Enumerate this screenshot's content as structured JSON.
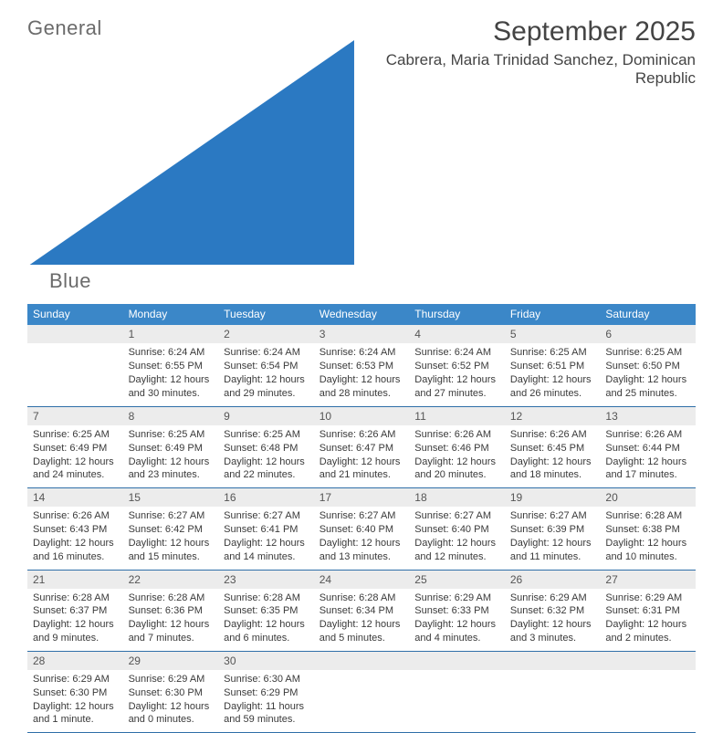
{
  "brand": {
    "text1": "General",
    "text2": "Blue",
    "tri_color": "#2b79c2"
  },
  "title": "September 2025",
  "location": "Cabrera, Maria Trinidad Sanchez, Dominican Republic",
  "colors": {
    "header_bg": "#3b87c8",
    "date_row_bg": "#ececec",
    "week_divider": "#2f6fa8",
    "text": "#333333"
  },
  "dow": [
    "Sunday",
    "Monday",
    "Tuesday",
    "Wednesday",
    "Thursday",
    "Friday",
    "Saturday"
  ],
  "weeks": [
    [
      {
        "n": "",
        "sr": "",
        "ss": "",
        "dl": ""
      },
      {
        "n": "1",
        "sr": "Sunrise: 6:24 AM",
        "ss": "Sunset: 6:55 PM",
        "dl": "Daylight: 12 hours and 30 minutes."
      },
      {
        "n": "2",
        "sr": "Sunrise: 6:24 AM",
        "ss": "Sunset: 6:54 PM",
        "dl": "Daylight: 12 hours and 29 minutes."
      },
      {
        "n": "3",
        "sr": "Sunrise: 6:24 AM",
        "ss": "Sunset: 6:53 PM",
        "dl": "Daylight: 12 hours and 28 minutes."
      },
      {
        "n": "4",
        "sr": "Sunrise: 6:24 AM",
        "ss": "Sunset: 6:52 PM",
        "dl": "Daylight: 12 hours and 27 minutes."
      },
      {
        "n": "5",
        "sr": "Sunrise: 6:25 AM",
        "ss": "Sunset: 6:51 PM",
        "dl": "Daylight: 12 hours and 26 minutes."
      },
      {
        "n": "6",
        "sr": "Sunrise: 6:25 AM",
        "ss": "Sunset: 6:50 PM",
        "dl": "Daylight: 12 hours and 25 minutes."
      }
    ],
    [
      {
        "n": "7",
        "sr": "Sunrise: 6:25 AM",
        "ss": "Sunset: 6:49 PM",
        "dl": "Daylight: 12 hours and 24 minutes."
      },
      {
        "n": "8",
        "sr": "Sunrise: 6:25 AM",
        "ss": "Sunset: 6:49 PM",
        "dl": "Daylight: 12 hours and 23 minutes."
      },
      {
        "n": "9",
        "sr": "Sunrise: 6:25 AM",
        "ss": "Sunset: 6:48 PM",
        "dl": "Daylight: 12 hours and 22 minutes."
      },
      {
        "n": "10",
        "sr": "Sunrise: 6:26 AM",
        "ss": "Sunset: 6:47 PM",
        "dl": "Daylight: 12 hours and 21 minutes."
      },
      {
        "n": "11",
        "sr": "Sunrise: 6:26 AM",
        "ss": "Sunset: 6:46 PM",
        "dl": "Daylight: 12 hours and 20 minutes."
      },
      {
        "n": "12",
        "sr": "Sunrise: 6:26 AM",
        "ss": "Sunset: 6:45 PM",
        "dl": "Daylight: 12 hours and 18 minutes."
      },
      {
        "n": "13",
        "sr": "Sunrise: 6:26 AM",
        "ss": "Sunset: 6:44 PM",
        "dl": "Daylight: 12 hours and 17 minutes."
      }
    ],
    [
      {
        "n": "14",
        "sr": "Sunrise: 6:26 AM",
        "ss": "Sunset: 6:43 PM",
        "dl": "Daylight: 12 hours and 16 minutes."
      },
      {
        "n": "15",
        "sr": "Sunrise: 6:27 AM",
        "ss": "Sunset: 6:42 PM",
        "dl": "Daylight: 12 hours and 15 minutes."
      },
      {
        "n": "16",
        "sr": "Sunrise: 6:27 AM",
        "ss": "Sunset: 6:41 PM",
        "dl": "Daylight: 12 hours and 14 minutes."
      },
      {
        "n": "17",
        "sr": "Sunrise: 6:27 AM",
        "ss": "Sunset: 6:40 PM",
        "dl": "Daylight: 12 hours and 13 minutes."
      },
      {
        "n": "18",
        "sr": "Sunrise: 6:27 AM",
        "ss": "Sunset: 6:40 PM",
        "dl": "Daylight: 12 hours and 12 minutes."
      },
      {
        "n": "19",
        "sr": "Sunrise: 6:27 AM",
        "ss": "Sunset: 6:39 PM",
        "dl": "Daylight: 12 hours and 11 minutes."
      },
      {
        "n": "20",
        "sr": "Sunrise: 6:28 AM",
        "ss": "Sunset: 6:38 PM",
        "dl": "Daylight: 12 hours and 10 minutes."
      }
    ],
    [
      {
        "n": "21",
        "sr": "Sunrise: 6:28 AM",
        "ss": "Sunset: 6:37 PM",
        "dl": "Daylight: 12 hours and 9 minutes."
      },
      {
        "n": "22",
        "sr": "Sunrise: 6:28 AM",
        "ss": "Sunset: 6:36 PM",
        "dl": "Daylight: 12 hours and 7 minutes."
      },
      {
        "n": "23",
        "sr": "Sunrise: 6:28 AM",
        "ss": "Sunset: 6:35 PM",
        "dl": "Daylight: 12 hours and 6 minutes."
      },
      {
        "n": "24",
        "sr": "Sunrise: 6:28 AM",
        "ss": "Sunset: 6:34 PM",
        "dl": "Daylight: 12 hours and 5 minutes."
      },
      {
        "n": "25",
        "sr": "Sunrise: 6:29 AM",
        "ss": "Sunset: 6:33 PM",
        "dl": "Daylight: 12 hours and 4 minutes."
      },
      {
        "n": "26",
        "sr": "Sunrise: 6:29 AM",
        "ss": "Sunset: 6:32 PM",
        "dl": "Daylight: 12 hours and 3 minutes."
      },
      {
        "n": "27",
        "sr": "Sunrise: 6:29 AM",
        "ss": "Sunset: 6:31 PM",
        "dl": "Daylight: 12 hours and 2 minutes."
      }
    ],
    [
      {
        "n": "28",
        "sr": "Sunrise: 6:29 AM",
        "ss": "Sunset: 6:30 PM",
        "dl": "Daylight: 12 hours and 1 minute."
      },
      {
        "n": "29",
        "sr": "Sunrise: 6:29 AM",
        "ss": "Sunset: 6:30 PM",
        "dl": "Daylight: 12 hours and 0 minutes."
      },
      {
        "n": "30",
        "sr": "Sunrise: 6:30 AM",
        "ss": "Sunset: 6:29 PM",
        "dl": "Daylight: 11 hours and 59 minutes."
      },
      {
        "n": "",
        "sr": "",
        "ss": "",
        "dl": ""
      },
      {
        "n": "",
        "sr": "",
        "ss": "",
        "dl": ""
      },
      {
        "n": "",
        "sr": "",
        "ss": "",
        "dl": ""
      },
      {
        "n": "",
        "sr": "",
        "ss": "",
        "dl": ""
      }
    ]
  ]
}
